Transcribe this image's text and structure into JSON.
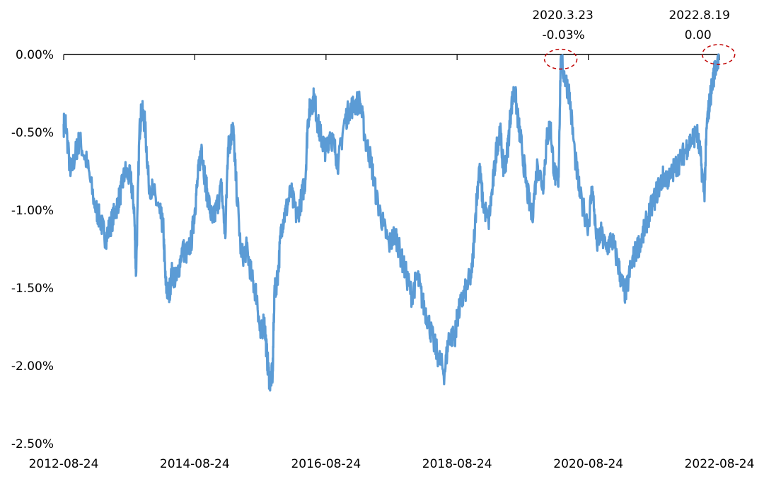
{
  "chart_data": {
    "type": "line",
    "title": "",
    "xlabel": "",
    "ylabel": "",
    "y_unit": "%",
    "ylim": [
      -2.5,
      0.0
    ],
    "xlim": [
      "2012-08-24",
      "2022-08-24"
    ],
    "grid": false,
    "legend": "none",
    "x_ticks": [
      "2012-08-24",
      "2014-08-24",
      "2016-08-24",
      "2018-08-24",
      "2020-08-24",
      "2022-08-24"
    ],
    "y_ticks": [
      {
        "value": 0.0,
        "label": "0.00%"
      },
      {
        "value": -0.5,
        "label": "-0.50%"
      },
      {
        "value": -1.0,
        "label": "-1.00%"
      },
      {
        "value": -1.5,
        "label": "-1.50%"
      },
      {
        "value": -2.0,
        "label": "-2.00%"
      },
      {
        "value": -2.5,
        "label": "-2.50%"
      }
    ],
    "series": [
      {
        "color": "#5B9BD5",
        "points": [
          [
            "2012-08-24",
            -0.45
          ],
          [
            "2012-09-05",
            -0.44
          ],
          [
            "2012-10-01",
            -0.78
          ],
          [
            "2012-11-01",
            -0.62
          ],
          [
            "2012-11-20",
            -0.55
          ],
          [
            "2013-01-01",
            -0.7
          ],
          [
            "2013-02-15",
            -0.98
          ],
          [
            "2013-03-15",
            -1.06
          ],
          [
            "2013-04-15",
            -1.18
          ],
          [
            "2013-05-10",
            -1.1
          ],
          [
            "2013-06-10",
            -1.0
          ],
          [
            "2013-07-05",
            -0.9
          ],
          [
            "2013-08-01",
            -0.75
          ],
          [
            "2013-09-01",
            -0.8
          ],
          [
            "2013-09-20",
            -0.98
          ],
          [
            "2013-10-01",
            -1.42
          ],
          [
            "2013-10-20",
            -0.5
          ],
          [
            "2013-11-01",
            -0.35
          ],
          [
            "2013-11-20",
            -0.45
          ],
          [
            "2013-12-10",
            -0.82
          ],
          [
            "2014-01-10",
            -0.9
          ],
          [
            "2014-02-10",
            -1.02
          ],
          [
            "2014-03-01",
            -1.1
          ],
          [
            "2014-03-15",
            -1.48
          ],
          [
            "2014-04-01",
            -1.55
          ],
          [
            "2014-04-20",
            -1.4
          ],
          [
            "2014-05-15",
            -1.45
          ],
          [
            "2014-06-15",
            -1.25
          ],
          [
            "2014-07-15",
            -1.28
          ],
          [
            "2014-08-05",
            -1.2
          ],
          [
            "2014-08-24",
            -1.0
          ],
          [
            "2014-09-10",
            -0.8
          ],
          [
            "2014-10-01",
            -0.58
          ],
          [
            "2014-10-20",
            -0.8
          ],
          [
            "2014-11-05",
            -0.92
          ],
          [
            "2014-12-01",
            -1.08
          ],
          [
            "2014-12-20",
            -1.0
          ],
          [
            "2015-01-20",
            -0.85
          ],
          [
            "2015-02-10",
            -1.18
          ],
          [
            "2015-02-25",
            -0.6
          ],
          [
            "2015-03-10",
            -0.55
          ],
          [
            "2015-03-25",
            -0.45
          ],
          [
            "2015-04-10",
            -0.8
          ],
          [
            "2015-05-10",
            -1.3
          ],
          [
            "2015-06-10",
            -1.25
          ],
          [
            "2015-07-10",
            -1.45
          ],
          [
            "2015-08-05",
            -1.55
          ],
          [
            "2015-08-25",
            -1.82
          ],
          [
            "2015-09-15",
            -1.7
          ],
          [
            "2015-10-01",
            -1.95
          ],
          [
            "2015-10-15",
            -2.1
          ],
          [
            "2015-11-01",
            -2.05
          ],
          [
            "2015-11-10",
            -1.55
          ],
          [
            "2015-12-01",
            -1.4
          ],
          [
            "2015-12-20",
            -1.1
          ],
          [
            "2016-01-10",
            -1.02
          ],
          [
            "2016-02-10",
            -0.88
          ],
          [
            "2016-03-15",
            -1.05
          ],
          [
            "2016-04-10",
            -0.92
          ],
          [
            "2016-05-01",
            -0.8
          ],
          [
            "2016-05-15",
            -0.42
          ],
          [
            "2016-06-01",
            -0.32
          ],
          [
            "2016-06-20",
            -0.28
          ],
          [
            "2016-07-10",
            -0.45
          ],
          [
            "2016-08-01",
            -0.55
          ],
          [
            "2016-08-24",
            -0.62
          ],
          [
            "2016-09-15",
            -0.5
          ],
          [
            "2016-10-10",
            -0.6
          ],
          [
            "2016-11-01",
            -0.7
          ],
          [
            "2016-12-01",
            -0.45
          ],
          [
            "2017-01-01",
            -0.35
          ],
          [
            "2017-02-01",
            -0.32
          ],
          [
            "2017-03-01",
            -0.3
          ],
          [
            "2017-04-01",
            -0.55
          ],
          [
            "2017-05-01",
            -0.68
          ],
          [
            "2017-06-01",
            -0.92
          ],
          [
            "2017-07-10",
            -1.1
          ],
          [
            "2017-08-10",
            -1.22
          ],
          [
            "2017-09-15",
            -1.15
          ],
          [
            "2017-10-15",
            -1.3
          ],
          [
            "2017-11-15",
            -1.42
          ],
          [
            "2017-12-15",
            -1.55
          ],
          [
            "2018-01-15",
            -1.42
          ],
          [
            "2018-02-15",
            -1.6
          ],
          [
            "2018-03-15",
            -1.7
          ],
          [
            "2018-04-15",
            -1.85
          ],
          [
            "2018-05-15",
            -1.95
          ],
          [
            "2018-06-15",
            -2.05
          ],
          [
            "2018-07-10",
            -1.8
          ],
          [
            "2018-08-10",
            -1.82
          ],
          [
            "2018-08-24",
            -1.7
          ],
          [
            "2018-09-15",
            -1.6
          ],
          [
            "2018-10-15",
            -1.5
          ],
          [
            "2018-11-15",
            -1.4
          ],
          [
            "2018-12-05",
            -1.02
          ],
          [
            "2018-12-25",
            -0.72
          ],
          [
            "2019-01-15",
            -0.95
          ],
          [
            "2019-02-15",
            -1.08
          ],
          [
            "2019-03-10",
            -0.85
          ],
          [
            "2019-04-01",
            -0.6
          ],
          [
            "2019-04-20",
            -0.48
          ],
          [
            "2019-05-10",
            -0.75
          ],
          [
            "2019-06-01",
            -0.62
          ],
          [
            "2019-06-20",
            -0.35
          ],
          [
            "2019-07-10",
            -0.22
          ],
          [
            "2019-08-01",
            -0.45
          ],
          [
            "2019-08-20",
            -0.6
          ],
          [
            "2019-09-15",
            -0.85
          ],
          [
            "2019-10-15",
            -1.05
          ],
          [
            "2019-11-15",
            -0.7
          ],
          [
            "2019-12-15",
            -0.85
          ],
          [
            "2020-01-05",
            -0.55
          ],
          [
            "2020-01-25",
            -0.45
          ],
          [
            "2020-02-15",
            -0.75
          ],
          [
            "2020-03-10",
            -0.85
          ],
          [
            "2020-03-23",
            -0.03
          ],
          [
            "2020-04-15",
            -0.15
          ],
          [
            "2020-05-10",
            -0.25
          ],
          [
            "2020-06-10",
            -0.65
          ],
          [
            "2020-07-10",
            -0.92
          ],
          [
            "2020-08-24",
            -1.1
          ],
          [
            "2020-09-15",
            -0.85
          ],
          [
            "2020-10-10",
            -1.22
          ],
          [
            "2020-11-01",
            -1.15
          ],
          [
            "2020-12-01",
            -1.25
          ],
          [
            "2021-01-01",
            -1.18
          ],
          [
            "2021-02-01",
            -1.32
          ],
          [
            "2021-03-01",
            -1.48
          ],
          [
            "2021-03-20",
            -1.54
          ],
          [
            "2021-04-20",
            -1.35
          ],
          [
            "2021-05-20",
            -1.25
          ],
          [
            "2021-06-20",
            -1.18
          ],
          [
            "2021-07-20",
            -1.05
          ],
          [
            "2021-08-20",
            -0.95
          ],
          [
            "2021-09-20",
            -0.85
          ],
          [
            "2021-10-20",
            -0.78
          ],
          [
            "2021-11-20",
            -0.8
          ],
          [
            "2021-12-20",
            -0.72
          ],
          [
            "2022-01-20",
            -0.68
          ],
          [
            "2022-02-20",
            -0.6
          ],
          [
            "2022-03-20",
            -0.55
          ],
          [
            "2022-04-20",
            -0.5
          ],
          [
            "2022-05-10",
            -0.65
          ],
          [
            "2022-06-01",
            -0.9
          ],
          [
            "2022-06-15",
            -0.45
          ],
          [
            "2022-07-01",
            -0.3
          ],
          [
            "2022-07-20",
            -0.15
          ],
          [
            "2022-08-19",
            0.0
          ]
        ]
      }
    ],
    "annotations": [
      {
        "date_label": "2020.3.23",
        "value_label": "-0.03%",
        "x": "2020-03-23",
        "y": -0.03
      },
      {
        "date_label": "2022.8.19",
        "value_label": "0.00",
        "x": "2022-08-19",
        "y": 0.0
      }
    ],
    "annotation_circle_color": "#C00000"
  }
}
